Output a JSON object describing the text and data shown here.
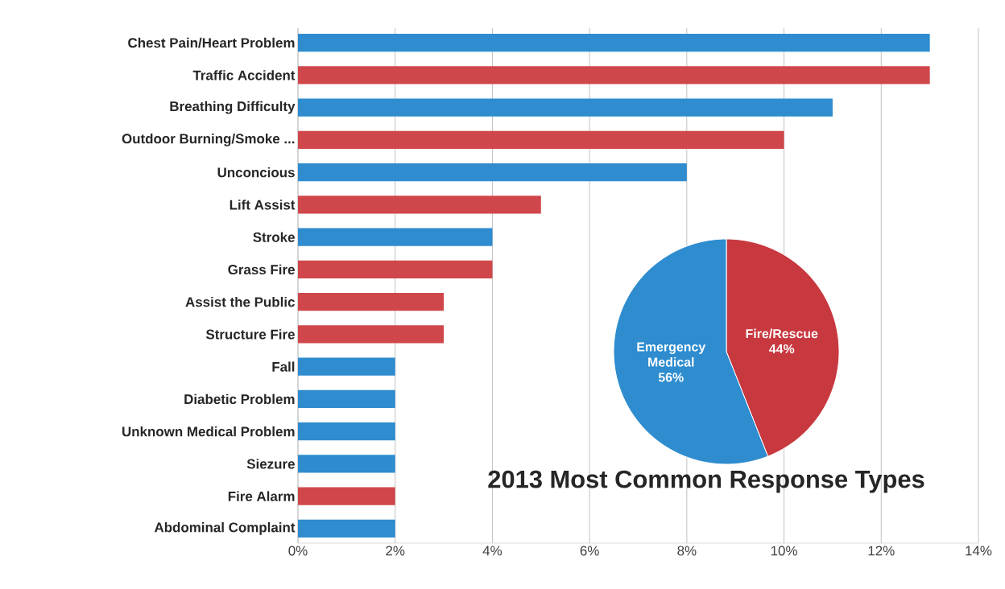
{
  "chart_data": [
    {
      "type": "bar",
      "orientation": "horizontal",
      "title": "2013 Most Common Response Types",
      "categories": [
        "Chest Pain/Heart Problem",
        "Traffic Accident",
        "Breathing Difficulty",
        "Outdoor Burning/Smoke ...",
        "Unconcious",
        "Lift Assist",
        "Stroke",
        "Grass Fire",
        "Assist the Public",
        "Structure Fire",
        "Fall",
        "Diabetic Problem",
        "Unknown Medical Problem",
        "Siezure",
        "Fire Alarm",
        "Abdominal Complaint"
      ],
      "values": [
        13,
        13,
        11,
        10,
        8,
        5,
        4,
        4,
        3,
        3,
        2,
        2,
        2,
        2,
        2,
        2
      ],
      "colors": [
        "#2e8ccf",
        "#d0474b",
        "#2e8ccf",
        "#d0474b",
        "#2e8ccf",
        "#d0474b",
        "#2e8ccf",
        "#d0474b",
        "#d0474b",
        "#d0474b",
        "#2e8ccf",
        "#2e8ccf",
        "#2e8ccf",
        "#2e8ccf",
        "#d0474b",
        "#2e8ccf"
      ],
      "xlim": [
        0,
        14
      ],
      "xticks": [
        {
          "value": 0,
          "label": "0%"
        },
        {
          "value": 2,
          "label": "2%"
        },
        {
          "value": 4,
          "label": "4%"
        },
        {
          "value": 6,
          "label": "6%"
        },
        {
          "value": 8,
          "label": "8%"
        },
        {
          "value": 10,
          "label": "10%"
        },
        {
          "value": 12,
          "label": "12%"
        },
        {
          "value": 14,
          "label": "14%"
        }
      ],
      "grid": "x"
    },
    {
      "type": "pie",
      "categories": [
        "Fire/Rescue",
        "Emergency Medical"
      ],
      "values": [
        44,
        56
      ],
      "colors": [
        "#c8393f",
        "#2e8ccf"
      ],
      "value_labels": [
        "44%",
        "56%"
      ]
    }
  ]
}
